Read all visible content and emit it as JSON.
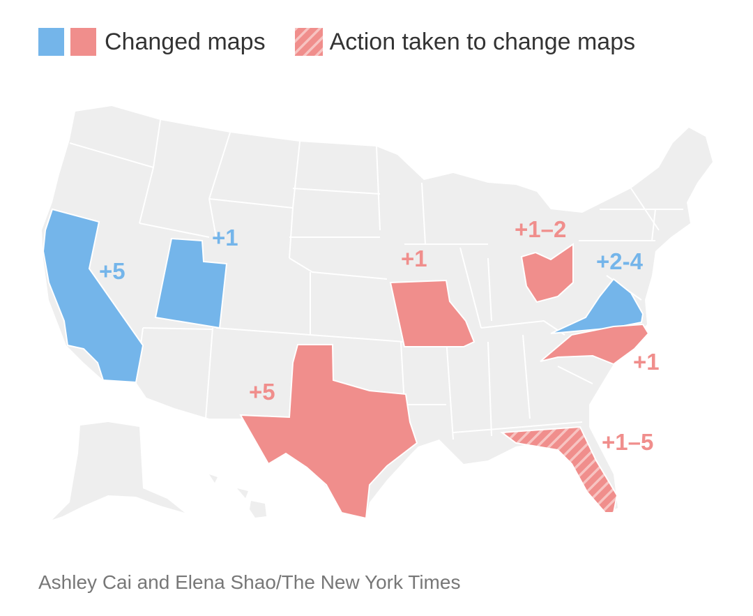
{
  "legend": {
    "changed_label": "Changed maps",
    "action_label": "Action taken to change maps",
    "blue_color": "#74b5ea",
    "red_color": "#f08e8c",
    "hatch_light_color": "#f7c4c2"
  },
  "map": {
    "base_color": "#eeeeee",
    "border_color": "#ffffff",
    "labels": {
      "california": "+5",
      "utah": "+1",
      "missouri": "+1",
      "ohio": "+1–2",
      "virginia": "+2-4",
      "north_carolina": "+1",
      "texas": "+5",
      "florida": "+1–5"
    }
  },
  "credit": "Ashley Cai and Elena Shao/The New York Times"
}
